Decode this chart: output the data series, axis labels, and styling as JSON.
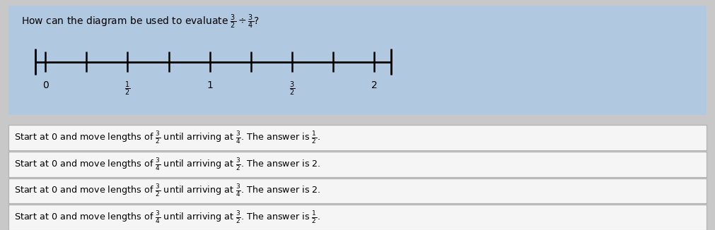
{
  "title": "How can the diagram be used to evaluate $\\frac{3}{2} \\div \\frac{3}{4}$?",
  "title_fontsize": 10,
  "number_line": {
    "tick_positions": [
      0,
      0.25,
      0.5,
      0.75,
      1.0,
      1.25,
      1.5,
      1.75,
      2.0
    ],
    "label_positions": [
      0,
      0.5,
      1.0,
      1.5,
      2.0
    ],
    "labels": [
      "0",
      "$\\frac{1}{2}$",
      "1",
      "$\\frac{3}{2}$",
      "2"
    ]
  },
  "outer_bg": "#c8c8c8",
  "header_bg": "#b0c8e0",
  "header_bg2": "#adc4dc",
  "option_bg": "#f5f5f5",
  "option_border": "#b0b0b0",
  "options": [
    "Start at 0 and move lengths of $\\frac{3}{2}$ until arriving at $\\frac{3}{4}$. The answer is $\\frac{1}{2}$.",
    "Start at 0 and move lengths of $\\frac{3}{4}$ until arriving at $\\frac{3}{2}$. The answer is 2.",
    "Start at 0 and move lengths of $\\frac{3}{2}$ until arriving at $\\frac{3}{4}$. The answer is 2.",
    "Start at 0 and move lengths of $\\frac{3}{4}$ until arriving at $\\frac{3}{2}$. The answer is $\\frac{1}{2}$."
  ],
  "figsize": [
    10.11,
    3.26
  ],
  "dpi": 100
}
